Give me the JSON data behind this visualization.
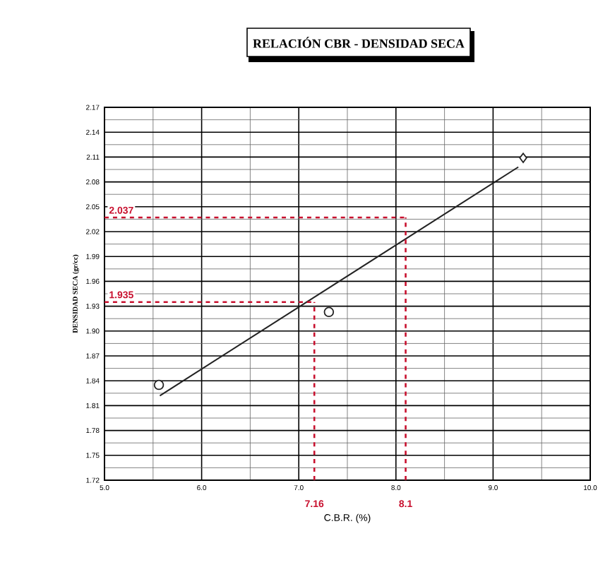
{
  "chart_data": {
    "type": "scatter",
    "title": "RELACIÓN CBR - DENSIDAD SECA",
    "xlabel": "C.B.R. (%)",
    "ylabel": "DENSIDAD SECA (gr/cc)",
    "xlim": [
      5.0,
      10.0
    ],
    "xticks": [
      {
        "value": 5,
        "label": "5.0"
      },
      {
        "value": 6,
        "label": "6.0"
      },
      {
        "value": 7,
        "label": "7.0"
      },
      {
        "value": 8,
        "label": "8.0"
      },
      {
        "value": 9,
        "label": "9.0"
      },
      {
        "value": 10,
        "label": "10.0"
      }
    ],
    "ylim": [
      1.72,
      2.17
    ],
    "yticks": [
      1.72,
      1.75,
      1.78,
      1.81,
      1.84,
      1.87,
      {
        "value": 1.9,
        "label": "1.90"
      },
      1.93,
      1.96,
      1.99,
      2.02,
      2.05,
      2.08,
      2.11,
      2.14,
      2.17
    ],
    "grid": true,
    "series": [
      {
        "marker": "circle",
        "color": "#222222",
        "x": [
          5.56,
          7.31
        ],
        "values": [
          1.835,
          1.923
        ]
      },
      {
        "marker": "diamond",
        "color": "#222222",
        "x": [
          9.31
        ],
        "values": [
          2.109
        ]
      },
      {
        "type": "line",
        "marker": "none",
        "line_style": "solid",
        "color": "#222222",
        "x": [
          5.57,
          9.26
        ],
        "values": [
          1.822,
          2.098
        ]
      }
    ],
    "ref_lines": [
      {
        "axis": "y",
        "value": 1.935,
        "label": "1.935",
        "color": "#c8102e",
        "line_style": "dashed"
      },
      {
        "axis": "x",
        "value": 7.16,
        "label": "7.16",
        "color": "#c8102e",
        "line_style": "dashed"
      },
      {
        "axis": "y",
        "value": 2.037,
        "label": "2.037",
        "color": "#c8102e",
        "line_style": "dashed"
      },
      {
        "axis": "x",
        "value": 8.1,
        "label": "8.1",
        "color": "#c8102e",
        "line_style": "dashed"
      }
    ]
  }
}
